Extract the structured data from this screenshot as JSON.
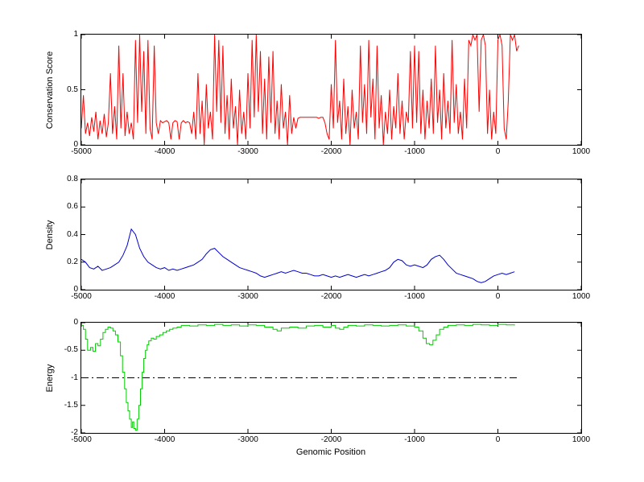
{
  "figure": {
    "background": "#ffffff"
  },
  "chart_data": [
    {
      "type": "line",
      "name": "conservation",
      "title": "",
      "ylabel": "Conservation Score",
      "xlabel": "",
      "color": "#ff0000",
      "xlim": [
        -5000,
        1000
      ],
      "ylim": [
        0,
        1
      ],
      "grid": false,
      "legend": "none",
      "xticks": [
        -5000,
        -4000,
        -3000,
        -2000,
        -1000,
        0,
        1000
      ],
      "xtick_labels": [
        "-5000",
        "-4000",
        "-3000",
        "-2000",
        "-1000",
        "0",
        "1000"
      ],
      "yticks": [
        0,
        0.5,
        1
      ],
      "ytick_labels": [
        "0",
        "0.5",
        "1"
      ],
      "series": {
        "x_start": -5000,
        "x_step": 25,
        "values": [
          0.15,
          0.45,
          0.1,
          0.2,
          0.08,
          0.25,
          0.12,
          0.3,
          0.05,
          0.22,
          0.1,
          0.28,
          0.07,
          0.2,
          0.65,
          0.1,
          0.35,
          0.05,
          0.9,
          0.15,
          0.65,
          0.08,
          0.3,
          0.1,
          0.2,
          0.05,
          0.95,
          0.2,
          1,
          0.3,
          0.85,
          0.1,
          0.95,
          0.15,
          0.05,
          0.9,
          0.2,
          0.1,
          0.22,
          0.2,
          0.21,
          0.22,
          0.2,
          0.05,
          0.2,
          0.22,
          0.21,
          0.05,
          0.2,
          0.22,
          0.2,
          0.21,
          0.2,
          0.1,
          0.3,
          0.05,
          0.65,
          0.1,
          0.4,
          0,
          0.55,
          0.15,
          0.3,
          0.05,
          1,
          0.3,
          0.95,
          0.2,
          0.9,
          0.1,
          0.45,
          0.05,
          0.6,
          0.15,
          0.35,
          0,
          0.5,
          0.1,
          0.3,
          0.05,
          0.65,
          0.15,
          0.95,
          0.25,
          1,
          0.3,
          0.85,
          0.1,
          0.6,
          0.05,
          0.8,
          0.2,
          0.85,
          0.1,
          0.4,
          0.05,
          0.55,
          0.15,
          0.3,
          0,
          0.45,
          0.1,
          0.25,
          0.15,
          0.24,
          0.25,
          0.25,
          0.25,
          0.25,
          0.25,
          0.25,
          0.25,
          0.25,
          0.25,
          0.24,
          0.25,
          0.25,
          0.2,
          0.1,
          0.05,
          0.55,
          0.15,
          0.95,
          0.2,
          0.4,
          0.05,
          0.6,
          0.1,
          0.35,
          0,
          0.5,
          0.15,
          0.3,
          0.05,
          0.9,
          0.2,
          0.55,
          0.1,
          0.95,
          0.25,
          0.6,
          0.05,
          0.9,
          0.15,
          0.45,
          0,
          0.3,
          0.1,
          0.5,
          0.05,
          0.35,
          0.15,
          0.65,
          0.1,
          0.4,
          0.05,
          0.3,
          0.2,
          0.85,
          0.15,
          0.9,
          0.2,
          0.85,
          0.1,
          0.5,
          0.05,
          0.4,
          0.15,
          0.6,
          0.1,
          0.9,
          0.2,
          0.5,
          0.05,
          0.65,
          0.15,
          0.4,
          0.1,
          0.95,
          0.2,
          0.55,
          0.1,
          0.3,
          0.05,
          0.6,
          0.15,
          0.95,
          0.9,
          1,
          0.95,
          1,
          0.3,
          0.95,
          1,
          0.9,
          0.1,
          0.5,
          0.05,
          0.3,
          0.1,
          0.95,
          1,
          0.9,
          0.15,
          0.05,
          0.4,
          1,
          0.95,
          1,
          0.85,
          0.9
        ]
      }
    },
    {
      "type": "line",
      "name": "density",
      "title": "",
      "ylabel": "Density",
      "xlabel": "",
      "color": "#0000cc",
      "xlim": [
        -5000,
        1000
      ],
      "ylim": [
        0,
        0.8
      ],
      "grid": false,
      "legend": "none",
      "xticks": [
        -5000,
        -4000,
        -3000,
        -2000,
        -1000,
        0,
        1000
      ],
      "xtick_labels": [
        "-5000",
        "-4000",
        "-3000",
        "-2000",
        "-1000",
        "0",
        "1000"
      ],
      "yticks": [
        0,
        0.2,
        0.4,
        0.6,
        0.8
      ],
      "ytick_labels": [
        "0",
        "0.2",
        "0.4",
        "0.6",
        "0.8"
      ],
      "series": {
        "x_start": -5000,
        "x_step": 50,
        "values": [
          0.22,
          0.2,
          0.16,
          0.15,
          0.17,
          0.14,
          0.15,
          0.16,
          0.18,
          0.2,
          0.25,
          0.32,
          0.44,
          0.4,
          0.3,
          0.24,
          0.2,
          0.18,
          0.16,
          0.15,
          0.16,
          0.14,
          0.15,
          0.14,
          0.15,
          0.16,
          0.17,
          0.18,
          0.2,
          0.22,
          0.26,
          0.29,
          0.3,
          0.27,
          0.24,
          0.22,
          0.2,
          0.18,
          0.16,
          0.15,
          0.14,
          0.13,
          0.12,
          0.1,
          0.09,
          0.1,
          0.11,
          0.12,
          0.13,
          0.12,
          0.13,
          0.14,
          0.13,
          0.12,
          0.12,
          0.11,
          0.1,
          0.1,
          0.11,
          0.1,
          0.09,
          0.1,
          0.09,
          0.1,
          0.11,
          0.1,
          0.09,
          0.1,
          0.11,
          0.1,
          0.11,
          0.12,
          0.13,
          0.14,
          0.16,
          0.2,
          0.22,
          0.21,
          0.18,
          0.17,
          0.18,
          0.17,
          0.16,
          0.18,
          0.22,
          0.24,
          0.25,
          0.22,
          0.18,
          0.15,
          0.12,
          0.11,
          0.1,
          0.09,
          0.08,
          0.06,
          0.05,
          0.06,
          0.08,
          0.1,
          0.11,
          0.12,
          0.11,
          0.12,
          0.13
        ]
      }
    },
    {
      "type": "line",
      "name": "energy",
      "title": "",
      "ylabel": "Energy",
      "xlabel": "Genomic Position",
      "color": "#00cc00",
      "xlim": [
        -5000,
        1000
      ],
      "ylim": [
        -2,
        0
      ],
      "grid": false,
      "legend": "none",
      "xticks": [
        -5000,
        -4000,
        -3000,
        -2000,
        -1000,
        0,
        1000
      ],
      "xtick_labels": [
        "-5000",
        "-4000",
        "-3000",
        "-2000",
        "-1000",
        "0",
        "1000"
      ],
      "yticks": [
        -2,
        -1.5,
        -1,
        -0.5,
        0
      ],
      "ytick_labels": [
        "-2",
        "-1.5",
        "-1",
        "-0.5",
        "0"
      ],
      "ref_line": {
        "y": -1,
        "x0": -5000,
        "x1": 250,
        "color": "#000000",
        "style": "dash-dot"
      },
      "series": {
        "step": true,
        "points": [
          [
            -5000,
            -0.05
          ],
          [
            -4975,
            -0.12
          ],
          [
            -4950,
            -0.3
          ],
          [
            -4925,
            -0.5
          ],
          [
            -4890,
            -0.45
          ],
          [
            -4860,
            -0.52
          ],
          [
            -4830,
            -0.38
          ],
          [
            -4800,
            -0.42
          ],
          [
            -4770,
            -0.3
          ],
          [
            -4740,
            -0.18
          ],
          [
            -4710,
            -0.12
          ],
          [
            -4680,
            -0.08
          ],
          [
            -4650,
            -0.1
          ],
          [
            -4620,
            -0.15
          ],
          [
            -4590,
            -0.22
          ],
          [
            -4560,
            -0.35
          ],
          [
            -4530,
            -0.6
          ],
          [
            -4505,
            -0.9
          ],
          [
            -4480,
            -1.2
          ],
          [
            -4460,
            -1.45
          ],
          [
            -4440,
            -1.6
          ],
          [
            -4420,
            -1.75
          ],
          [
            -4400,
            -1.9
          ],
          [
            -4385,
            -1.8
          ],
          [
            -4370,
            -1.92
          ],
          [
            -4350,
            -1.95
          ],
          [
            -4330,
            -1.75
          ],
          [
            -4310,
            -1.5
          ],
          [
            -4290,
            -1.2
          ],
          [
            -4270,
            -0.9
          ],
          [
            -4250,
            -0.65
          ],
          [
            -4230,
            -0.5
          ],
          [
            -4210,
            -0.4
          ],
          [
            -4190,
            -0.33
          ],
          [
            -4160,
            -0.28
          ],
          [
            -4130,
            -0.3
          ],
          [
            -4100,
            -0.25
          ],
          [
            -4060,
            -0.22
          ],
          [
            -4020,
            -0.18
          ],
          [
            -3980,
            -0.15
          ],
          [
            -3940,
            -0.12
          ],
          [
            -3900,
            -0.1
          ],
          [
            -3850,
            -0.08
          ],
          [
            -3800,
            -0.05
          ],
          [
            -3700,
            -0.06
          ],
          [
            -3600,
            -0.04
          ],
          [
            -3500,
            -0.05
          ],
          [
            -3400,
            -0.03
          ],
          [
            -3300,
            -0.05
          ],
          [
            -3200,
            -0.04
          ],
          [
            -3100,
            -0.06
          ],
          [
            -3000,
            -0.04
          ],
          [
            -2900,
            -0.05
          ],
          [
            -2800,
            -0.08
          ],
          [
            -2700,
            -0.12
          ],
          [
            -2650,
            -0.15
          ],
          [
            -2600,
            -0.1
          ],
          [
            -2500,
            -0.08
          ],
          [
            -2400,
            -0.1
          ],
          [
            -2300,
            -0.06
          ],
          [
            -2200,
            -0.05
          ],
          [
            -2100,
            -0.08
          ],
          [
            -2000,
            -0.05
          ],
          [
            -1950,
            -0.1
          ],
          [
            -1900,
            -0.12
          ],
          [
            -1850,
            -0.08
          ],
          [
            -1800,
            -0.05
          ],
          [
            -1700,
            -0.06
          ],
          [
            -1600,
            -0.04
          ],
          [
            -1500,
            -0.05
          ],
          [
            -1400,
            -0.06
          ],
          [
            -1300,
            -0.05
          ],
          [
            -1200,
            -0.04
          ],
          [
            -1100,
            -0.06
          ],
          [
            -1000,
            -0.08
          ],
          [
            -950,
            -0.15
          ],
          [
            -900,
            -0.28
          ],
          [
            -860,
            -0.38
          ],
          [
            -820,
            -0.4
          ],
          [
            -780,
            -0.32
          ],
          [
            -740,
            -0.22
          ],
          [
            -700,
            -0.12
          ],
          [
            -650,
            -0.08
          ],
          [
            -600,
            -0.05
          ],
          [
            -500,
            -0.04
          ],
          [
            -400,
            -0.05
          ],
          [
            -300,
            -0.03
          ],
          [
            -200,
            -0.04
          ],
          [
            -100,
            -0.05
          ],
          [
            0,
            -0.03
          ],
          [
            100,
            -0.04
          ],
          [
            200,
            -0.05
          ]
        ]
      }
    }
  ]
}
